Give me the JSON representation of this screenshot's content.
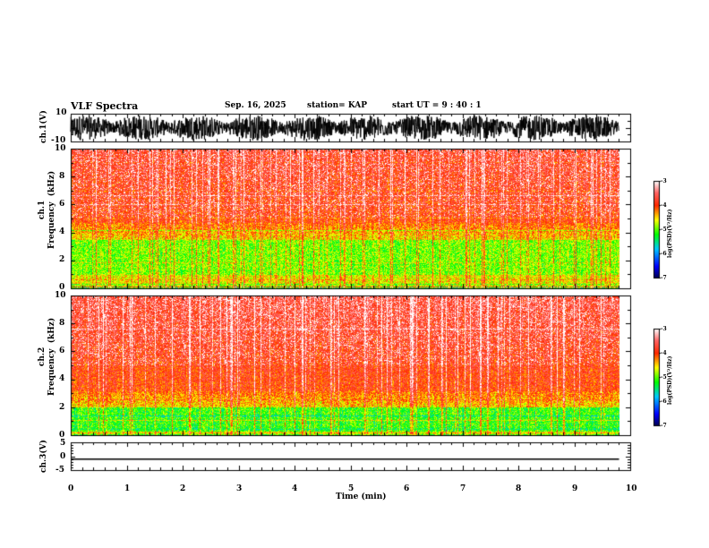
{
  "header": {
    "title": "VLF Spectra",
    "date": "Sep. 16, 2025",
    "station": "station= KAP",
    "start": "start  UT  =    9  : 40 : 1"
  },
  "colors": {
    "spectrogram_low": "#0000ff",
    "spectrogram_mid": "#00ff00",
    "spectrogram_high": "#ff0000",
    "spectrogram_top": "#ffffff",
    "waveform": "#000000"
  },
  "chart_data": [
    {
      "type": "line",
      "name": "ch1-waveform",
      "ylabel": "ch.1(V)",
      "ylim": [
        -10,
        10
      ],
      "yticks": [
        "10",
        "-10"
      ],
      "xlim": [
        0,
        10
      ],
      "data_end_min": 9.8,
      "amplitude_range": [
        -10,
        10
      ]
    },
    {
      "type": "heatmap",
      "name": "ch1-spectrogram",
      "ylabel": "ch.1\nFrequency  (kHz)",
      "ylim": [
        0,
        10
      ],
      "yticks": [
        "0",
        "2",
        "4",
        "6",
        "8",
        "10"
      ],
      "xlim": [
        0,
        10
      ],
      "data_end_min": 9.8,
      "green_band_khz": [
        1.0,
        3.5
      ],
      "colorbar": {
        "label": "log(PSD)(V²/Hz)",
        "range": [
          -7,
          -3
        ],
        "ticks": [
          "-3",
          "-4",
          "-5",
          "-6",
          "-7"
        ]
      }
    },
    {
      "type": "heatmap",
      "name": "ch2-spectrogram",
      "ylabel": "ch.2\nFrequency  (kHz)",
      "ylim": [
        0,
        10
      ],
      "yticks": [
        "0",
        "2",
        "4",
        "6",
        "8",
        "10"
      ],
      "xlim": [
        0,
        10
      ],
      "data_end_min": 9.8,
      "green_band_khz": [
        0.3,
        2.0
      ],
      "colorbar": {
        "label": "log(PSD)(V²/Hz)",
        "range": [
          -7,
          -3
        ],
        "ticks": [
          "-3",
          "-4",
          "-5",
          "-6",
          "-7"
        ]
      }
    },
    {
      "type": "line",
      "name": "ch3-waveform",
      "ylabel": "ch.3(V)",
      "ylim": [
        -5,
        5
      ],
      "yticks": [
        "5",
        "0",
        "-5"
      ],
      "xlim": [
        0,
        10
      ],
      "data_end_min": 9.8,
      "amplitude_range": [
        -1.3,
        -0.8
      ]
    }
  ],
  "xaxis": {
    "label": "Time  (min)",
    "ticks": [
      "0",
      "1",
      "2",
      "3",
      "4",
      "5",
      "6",
      "7",
      "8",
      "9",
      "10"
    ]
  }
}
